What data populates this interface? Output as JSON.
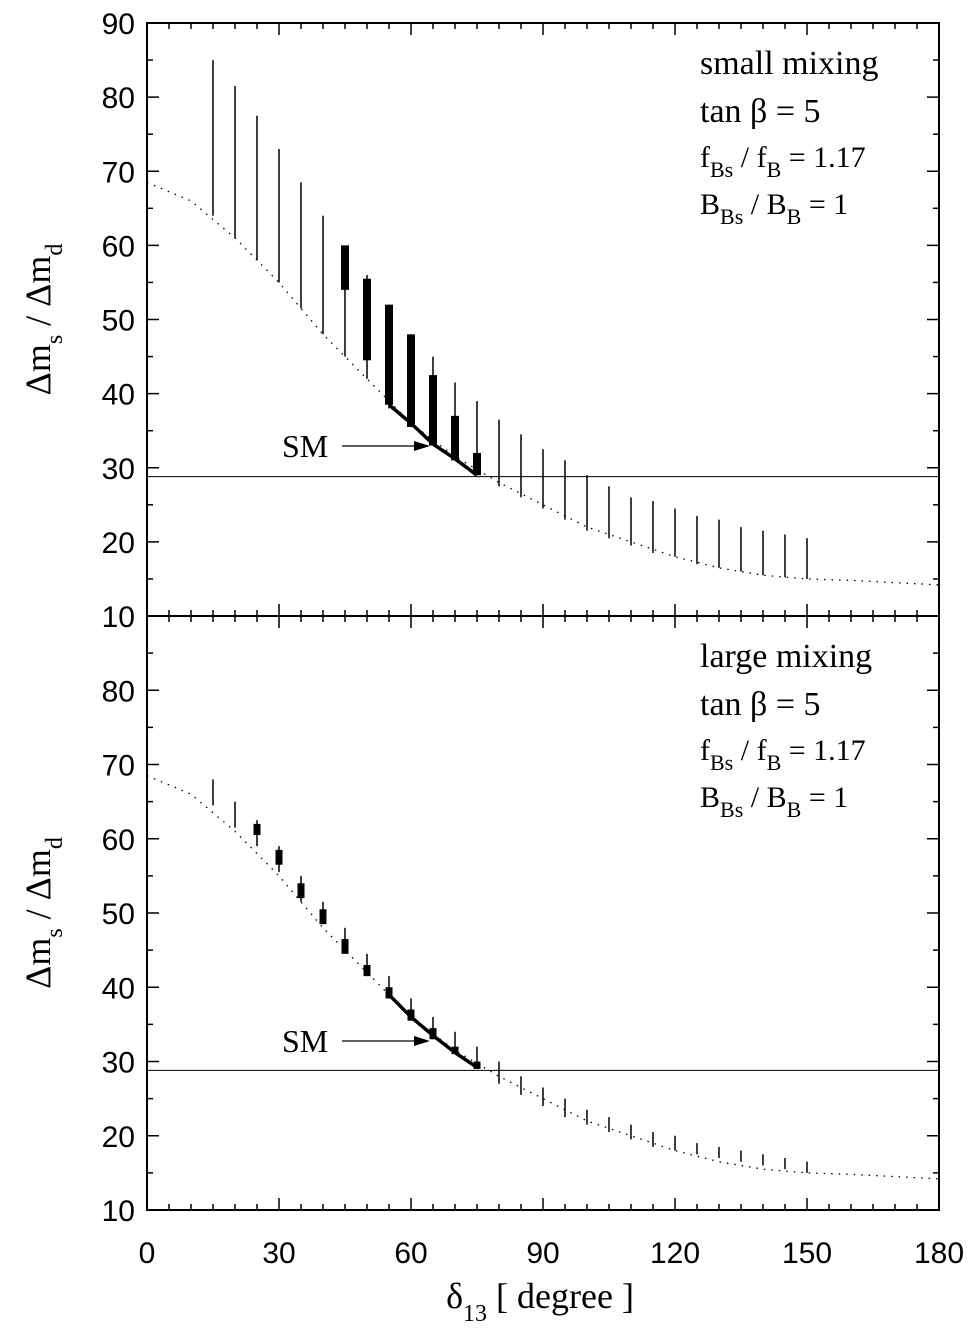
{
  "chart_data": [
    {
      "type": "line",
      "panel": "top",
      "ylabel": {
        "main": "Δm",
        "sub1": "s",
        "mid": " / Δm",
        "sub2": "d"
      },
      "xlim": [
        0,
        180
      ],
      "ylim": [
        10,
        90
      ],
      "yticks": [
        10,
        20,
        30,
        40,
        50,
        60,
        70,
        80,
        90
      ],
      "xticks": [
        0,
        30,
        60,
        90,
        120,
        150,
        180
      ],
      "annotations": [
        {
          "text": "small mixing",
          "sub": "",
          "tail": ""
        },
        {
          "text": "tan β =  5",
          "sub": "",
          "tail": ""
        },
        {
          "text": "f",
          "sub": "Bs",
          "tail": " / f",
          "sub2": "B",
          "tail2": " = 1.17"
        },
        {
          "text": "B",
          "sub": "Bs",
          "tail": " / B",
          "sub2": "B",
          "tail2": " = 1"
        }
      ],
      "sm_label": "SM",
      "sm_horizontal_line": 28.8,
      "dotted_curve": {
        "x": [
          0,
          10,
          20,
          30,
          40,
          50,
          60,
          70,
          80,
          90,
          100,
          110,
          120,
          130,
          140,
          150,
          160,
          170,
          180
        ],
        "y": [
          68.5,
          66,
          61,
          55,
          48,
          42,
          36,
          31.5,
          28,
          25,
          22,
          20,
          18,
          16.5,
          15.5,
          15,
          14.8,
          14.5,
          14.2
        ]
      },
      "thin_bars": [
        {
          "x": 15,
          "low": 64,
          "high": 85
        },
        {
          "x": 20,
          "low": 61,
          "high": 81.5
        },
        {
          "x": 25,
          "low": 58,
          "high": 77.5
        },
        {
          "x": 30,
          "low": 55,
          "high": 73
        },
        {
          "x": 35,
          "low": 51.5,
          "high": 68.5
        },
        {
          "x": 40,
          "low": 48,
          "high": 64
        },
        {
          "x": 45,
          "low": 45,
          "high": 60
        },
        {
          "x": 50,
          "low": 42,
          "high": 56
        },
        {
          "x": 55,
          "low": 38,
          "high": 52
        },
        {
          "x": 60,
          "low": 36,
          "high": 48
        },
        {
          "x": 65,
          "low": 33,
          "high": 45
        },
        {
          "x": 70,
          "low": 31,
          "high": 41.5
        },
        {
          "x": 75,
          "low": 29,
          "high": 39
        },
        {
          "x": 80,
          "low": 27.5,
          "high": 36.5
        },
        {
          "x": 85,
          "low": 26,
          "high": 34.5
        },
        {
          "x": 90,
          "low": 24.5,
          "high": 32.5
        },
        {
          "x": 95,
          "low": 23,
          "high": 31
        },
        {
          "x": 100,
          "low": 21.5,
          "high": 29
        },
        {
          "x": 105,
          "low": 20.5,
          "high": 27.5
        },
        {
          "x": 110,
          "low": 19.5,
          "high": 26
        },
        {
          "x": 115,
          "low": 18.5,
          "high": 25.5
        },
        {
          "x": 120,
          "low": 18,
          "high": 24.5
        },
        {
          "x": 125,
          "low": 17,
          "high": 23.5
        },
        {
          "x": 130,
          "low": 16.5,
          "high": 23
        },
        {
          "x": 135,
          "low": 16,
          "high": 22
        },
        {
          "x": 140,
          "low": 15.5,
          "high": 21.5
        },
        {
          "x": 145,
          "low": 15.2,
          "high": 21
        },
        {
          "x": 150,
          "low": 15,
          "high": 20.5
        }
      ],
      "thick_bars": [
        {
          "x": 45,
          "low": 54,
          "high": 60
        },
        {
          "x": 50,
          "low": 44.5,
          "high": 55.5
        },
        {
          "x": 55,
          "low": 38.5,
          "high": 52
        },
        {
          "x": 60,
          "low": 35.5,
          "high": 48
        },
        {
          "x": 65,
          "low": 33,
          "high": 42.5
        },
        {
          "x": 70,
          "low": 31,
          "high": 37
        },
        {
          "x": 75,
          "low": 29,
          "high": 32
        }
      ],
      "sm_curve": {
        "x": [
          55,
          60,
          65,
          70,
          75
        ],
        "y": [
          38.5,
          36,
          33.2,
          31.2,
          29
        ]
      }
    },
    {
      "type": "line",
      "panel": "bottom",
      "xlabel": {
        "main": "δ",
        "sub": "13",
        "tail": "  [ degree ]"
      },
      "ylabel": {
        "main": "Δm",
        "sub1": "s",
        "mid": " / Δm",
        "sub2": "d"
      },
      "xlim": [
        0,
        180
      ],
      "ylim": [
        10,
        90
      ],
      "yticks": [
        10,
        20,
        30,
        40,
        50,
        60,
        70,
        80
      ],
      "xticks": [
        0,
        30,
        60,
        90,
        120,
        150,
        180
      ],
      "annotations": [
        {
          "text": "large mixing",
          "sub": "",
          "tail": ""
        },
        {
          "text": "tan β =  5",
          "sub": "",
          "tail": ""
        },
        {
          "text": "f",
          "sub": "Bs",
          "tail": " / f",
          "sub2": "B",
          "tail2": " = 1.17"
        },
        {
          "text": "B",
          "sub": "Bs",
          "tail": " / B",
          "sub2": "B",
          "tail2": " = 1"
        }
      ],
      "sm_label": "SM",
      "sm_horizontal_line": 28.8,
      "dotted_curve": {
        "x": [
          0,
          10,
          20,
          30,
          40,
          50,
          60,
          70,
          80,
          90,
          100,
          110,
          120,
          130,
          140,
          150,
          160,
          170,
          180
        ],
        "y": [
          68.5,
          66,
          61,
          55,
          48,
          42,
          36,
          31.5,
          28,
          25,
          22,
          20,
          18,
          16.5,
          15.5,
          15,
          14.8,
          14.5,
          14.2
        ]
      },
      "thin_bars": [
        {
          "x": 15,
          "low": 64.5,
          "high": 68
        },
        {
          "x": 20,
          "low": 61.5,
          "high": 65
        },
        {
          "x": 25,
          "low": 59,
          "high": 62.5
        },
        {
          "x": 30,
          "low": 55.5,
          "high": 59
        },
        {
          "x": 35,
          "low": 51.5,
          "high": 55
        },
        {
          "x": 40,
          "low": 48.5,
          "high": 51.5
        },
        {
          "x": 45,
          "low": 45,
          "high": 48
        },
        {
          "x": 50,
          "low": 41.5,
          "high": 44.5
        },
        {
          "x": 55,
          "low": 38.5,
          "high": 41.5
        },
        {
          "x": 60,
          "low": 35.5,
          "high": 38.5
        },
        {
          "x": 65,
          "low": 33,
          "high": 36
        },
        {
          "x": 70,
          "low": 31,
          "high": 34
        },
        {
          "x": 75,
          "low": 29,
          "high": 32
        },
        {
          "x": 80,
          "low": 27,
          "high": 30
        },
        {
          "x": 85,
          "low": 25.5,
          "high": 28
        },
        {
          "x": 90,
          "low": 24,
          "high": 26.5
        },
        {
          "x": 95,
          "low": 22.5,
          "high": 25
        },
        {
          "x": 100,
          "low": 21.5,
          "high": 23.5
        },
        {
          "x": 105,
          "low": 20.5,
          "high": 22.5
        },
        {
          "x": 110,
          "low": 19.5,
          "high": 21.5
        },
        {
          "x": 115,
          "low": 18.5,
          "high": 20.5
        },
        {
          "x": 120,
          "low": 18,
          "high": 20
        },
        {
          "x": 125,
          "low": 17.5,
          "high": 19
        },
        {
          "x": 130,
          "low": 17,
          "high": 18.5
        },
        {
          "x": 135,
          "low": 16.5,
          "high": 18
        },
        {
          "x": 140,
          "low": 16,
          "high": 17.5
        },
        {
          "x": 145,
          "low": 15.5,
          "high": 17
        },
        {
          "x": 150,
          "low": 15,
          "high": 16.5
        }
      ],
      "thick_bars": [
        {
          "x": 25,
          "low": 60.5,
          "high": 62
        },
        {
          "x": 30,
          "low": 56.5,
          "high": 58.5
        },
        {
          "x": 35,
          "low": 52,
          "high": 54
        },
        {
          "x": 40,
          "low": 48.5,
          "high": 50.5
        },
        {
          "x": 45,
          "low": 44.5,
          "high": 46.5
        },
        {
          "x": 50,
          "low": 41.5,
          "high": 43
        },
        {
          "x": 55,
          "low": 38.5,
          "high": 40
        },
        {
          "x": 60,
          "low": 35.5,
          "high": 37
        },
        {
          "x": 65,
          "low": 33,
          "high": 34.5
        },
        {
          "x": 70,
          "low": 31,
          "high": 32
        },
        {
          "x": 75,
          "low": 29,
          "high": 30
        }
      ],
      "sm_curve": {
        "x": [
          55,
          60,
          65,
          70,
          75
        ],
        "y": [
          39,
          36,
          33.5,
          31.2,
          29.2
        ]
      }
    }
  ]
}
